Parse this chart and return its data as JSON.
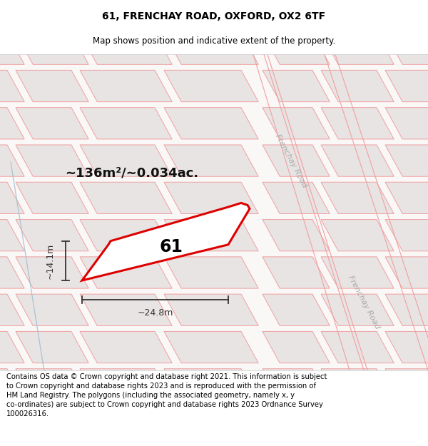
{
  "title": "61, FRENCHAY ROAD, OXFORD, OX2 6TF",
  "subtitle": "Map shows position and indicative extent of the property.",
  "footer": "Contains OS data © Crown copyright and database right 2021. This information is subject\nto Crown copyright and database rights 2023 and is reproduced with the permission of\nHM Land Registry. The polygons (including the associated geometry, namely x, y\nco-ordinates) are subject to Crown copyright and database rights 2023 Ordnance Survey\n100026316.",
  "bg_color": "#ffffff",
  "area_text": "~136m²/~0.034ac.",
  "label_61": "61",
  "dim_width": "~24.8m",
  "dim_height": "~14.1m",
  "road_label_top": "Frenchay Road",
  "road_label_bottom": "Frenchay Road",
  "title_fontsize": 10,
  "subtitle_fontsize": 8.5,
  "footer_fontsize": 7.2,
  "building_fc": "#e8e4e4",
  "building_ec": "#f0a0a0",
  "road_line_color": "#f0a0a0",
  "prop_ec": "#dd0000",
  "prop_fc": "#ffffff",
  "road_text_color": "#aaaaaa",
  "dim_line_color": "#333333",
  "area_text_color": "#111111",
  "map_bg": "#faf7f7"
}
